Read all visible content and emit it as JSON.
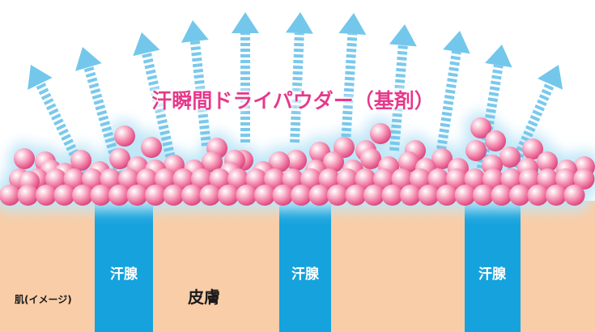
{
  "title": "汗瞬間ドライパウダー（基剤）",
  "labels": {
    "sweat_gland": "汗腺",
    "skin": "皮膚",
    "skin_image": "肌(イメージ)"
  },
  "colors": {
    "skin": "#f9cda7",
    "sweat_gland": "#16a3dd",
    "title": "#e6398c",
    "arrow": "#6cc4ea",
    "powder": "#f07aa3",
    "powder_glow": "#bfe6f7"
  }
}
